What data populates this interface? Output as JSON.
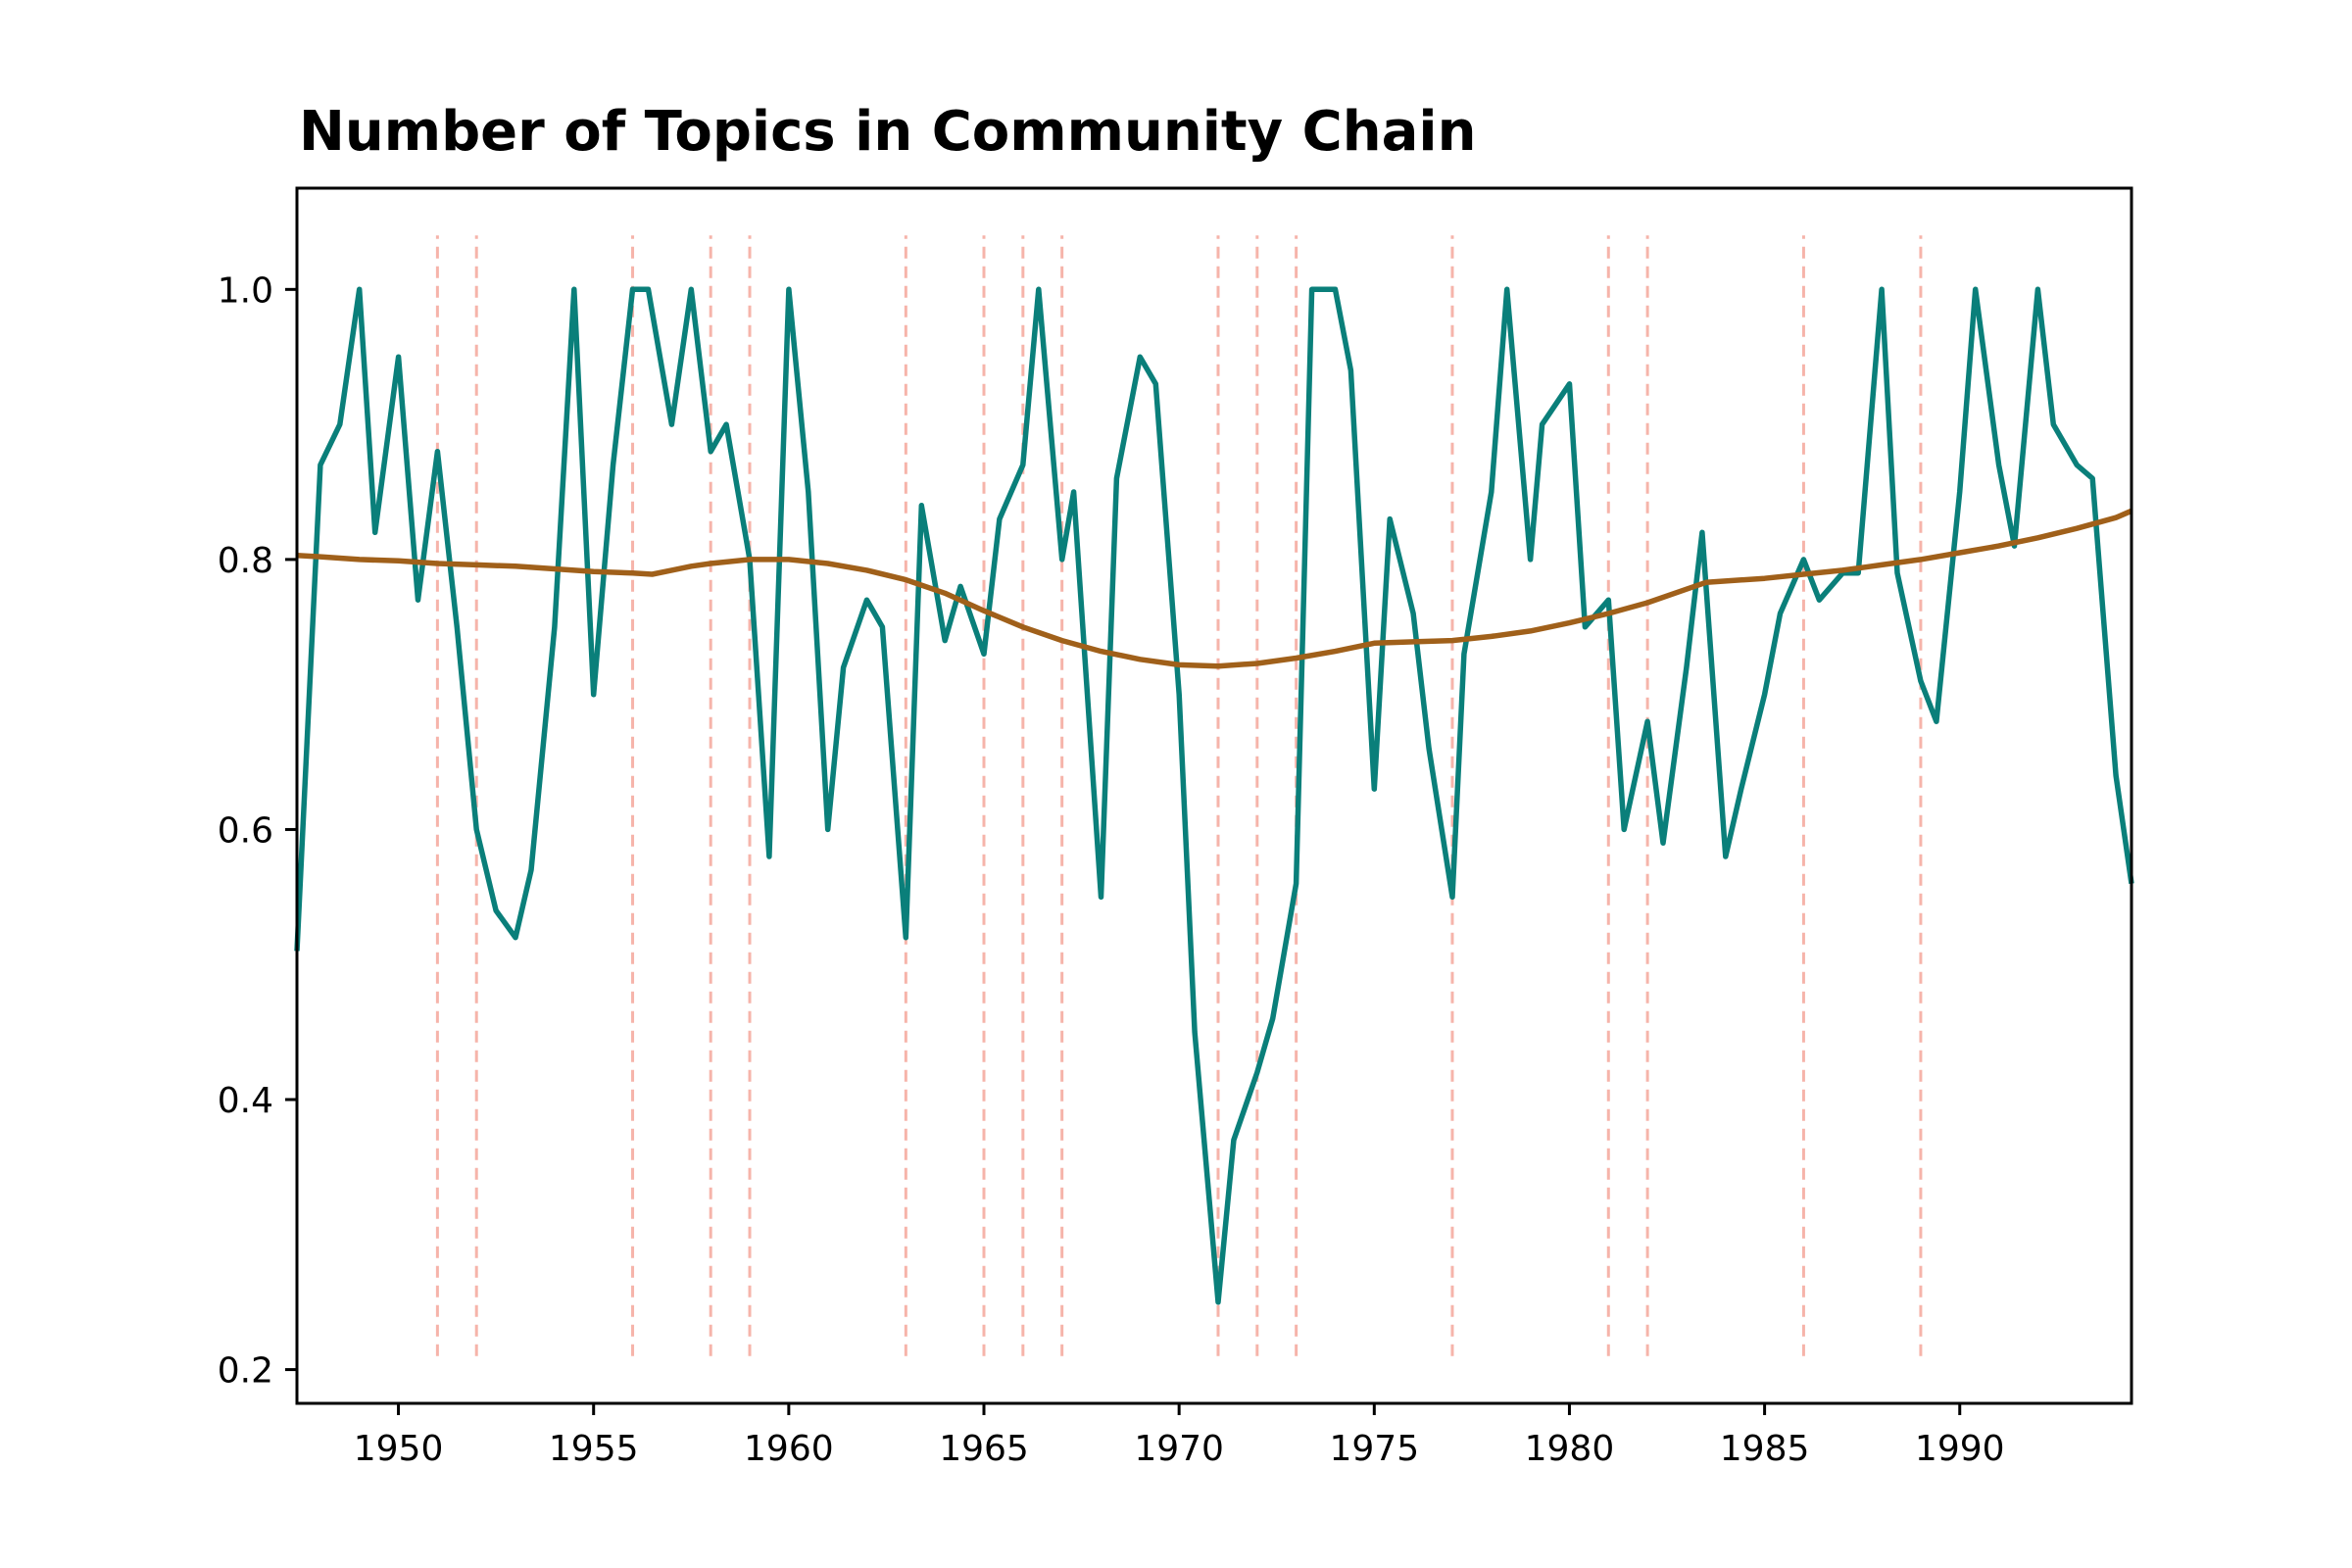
{
  "chart_data": {
    "type": "line",
    "title": "Number of Topics in Community Chain",
    "xlabel": "",
    "ylabel": "",
    "xlim": [
      1947.4,
      1994.4
    ],
    "ylim": [
      0.175,
      1.075
    ],
    "x_ticks": [
      1950,
      1955,
      1960,
      1965,
      1970,
      1975,
      1980,
      1985,
      1990
    ],
    "y_ticks": [
      0.2,
      0.4,
      0.6,
      0.8,
      1.0
    ],
    "x_tick_labels": [
      "1950",
      "1955",
      "1960",
      "1965",
      "1970",
      "1975",
      "1980",
      "1985",
      "1990"
    ],
    "y_tick_labels": [
      "0.2",
      "0.4",
      "0.6",
      "0.8",
      "1.0"
    ],
    "grid": false,
    "colors": {
      "raw": "#0a7f7a",
      "trend": "#a0601a",
      "event": "#f6b4aa"
    },
    "event_lines_x": [
      1951,
      1952,
      1956,
      1958,
      1959,
      1963,
      1965,
      1966,
      1967,
      1971,
      1972,
      1973,
      1977,
      1981,
      1982,
      1986,
      1989
    ],
    "event_line_range": [
      0.21,
      1.04
    ],
    "series": [
      {
        "key": "raw",
        "x": [
          1947.4,
          1948.0,
          1948.5,
          1949.0,
          1949.4,
          1950.0,
          1950.5,
          1951.0,
          1951.5,
          1952.0,
          1952.5,
          1953.0,
          1953.4,
          1954.0,
          1954.5,
          1955.0,
          1955.5,
          1956.0,
          1956.4,
          1957.0,
          1957.5,
          1958.0,
          1958.4,
          1959.0,
          1959.5,
          1960.0,
          1960.5,
          1961.0,
          1961.4,
          1962.0,
          1962.4,
          1963.0,
          1963.4,
          1964.0,
          1964.4,
          1965.0,
          1965.4,
          1966.0,
          1966.4,
          1967.0,
          1967.3,
          1968.0,
          1968.4,
          1969.0,
          1969.4,
          1970.0,
          1970.4,
          1971.0,
          1971.4,
          1972.0,
          1972.4,
          1973.0,
          1973.4,
          1974.0,
          1974.4,
          1975.0,
          1975.4,
          1976.0,
          1976.4,
          1977.0,
          1977.3,
          1978.0,
          1978.4,
          1979.0,
          1979.3,
          1980.0,
          1980.4,
          1981.0,
          1981.4,
          1982.0,
          1982.4,
          1983.0,
          1983.4,
          1984.0,
          1984.4,
          1985.0,
          1985.4,
          1986.0,
          1986.4,
          1987.0,
          1987.4,
          1988.0,
          1988.4,
          1989.0,
          1989.4,
          1990.0,
          1990.4,
          1991.0,
          1991.4,
          1992.0,
          1992.4,
          1993.0,
          1993.4,
          1994.0,
          1994.4
        ],
        "y": [
          0.51,
          0.87,
          0.9,
          1.0,
          0.82,
          0.95,
          0.77,
          0.88,
          0.75,
          0.6,
          0.54,
          0.52,
          0.57,
          0.75,
          1.0,
          0.7,
          0.87,
          1.0,
          1.0,
          0.9,
          1.0,
          0.88,
          0.9,
          0.8,
          0.58,
          1.0,
          0.85,
          0.6,
          0.72,
          0.77,
          0.75,
          0.52,
          0.84,
          0.74,
          0.78,
          0.73,
          0.83,
          0.87,
          1.0,
          0.8,
          0.85,
          0.55,
          0.86,
          0.95,
          0.93,
          0.7,
          0.45,
          0.25,
          0.37,
          0.42,
          0.46,
          0.56,
          1.0,
          1.0,
          0.94,
          0.63,
          0.83,
          0.76,
          0.66,
          0.55,
          0.73,
          0.85,
          1.0,
          0.8,
          0.9,
          0.93,
          0.75,
          0.77,
          0.6,
          0.68,
          0.59,
          0.72,
          0.82,
          0.58,
          0.63,
          0.7,
          0.76,
          0.8,
          0.77,
          0.79,
          0.79,
          1.0,
          0.79,
          0.71,
          0.68,
          0.85,
          1.0,
          0.87,
          0.81,
          1.0,
          0.9,
          0.87,
          0.86,
          0.64,
          0.56
        ]
      },
      {
        "key": "trend",
        "x": [
          1947.4,
          1948.0,
          1949.0,
          1950.0,
          1951.0,
          1952.0,
          1953.0,
          1954.0,
          1955.0,
          1956.0,
          1956.5,
          1957.0,
          1957.5,
          1958.0,
          1959.0,
          1960.0,
          1961.0,
          1962.0,
          1963.0,
          1964.0,
          1965.0,
          1966.0,
          1967.0,
          1968.0,
          1969.0,
          1970.0,
          1971.0,
          1972.0,
          1973.0,
          1974.0,
          1975.0,
          1976.0,
          1977.0,
          1978.0,
          1979.0,
          1980.0,
          1981.0,
          1982.0,
          1983.0,
          1983.5,
          1984.0,
          1985.0,
          1986.0,
          1987.0,
          1988.0,
          1989.0,
          1990.0,
          1991.0,
          1992.0,
          1993.0,
          1994.0,
          1994.4
        ],
        "y": [
          0.803,
          0.802,
          0.8,
          0.799,
          0.797,
          0.796,
          0.795,
          0.793,
          0.791,
          0.79,
          0.789,
          0.792,
          0.795,
          0.797,
          0.8,
          0.8,
          0.797,
          0.792,
          0.785,
          0.775,
          0.762,
          0.75,
          0.74,
          0.732,
          0.726,
          0.722,
          0.721,
          0.723,
          0.727,
          0.732,
          0.738,
          0.739,
          0.74,
          0.743,
          0.747,
          0.753,
          0.76,
          0.768,
          0.778,
          0.783,
          0.784,
          0.786,
          0.789,
          0.792,
          0.796,
          0.8,
          0.805,
          0.81,
          0.816,
          0.823,
          0.831,
          0.836
        ]
      }
    ]
  }
}
